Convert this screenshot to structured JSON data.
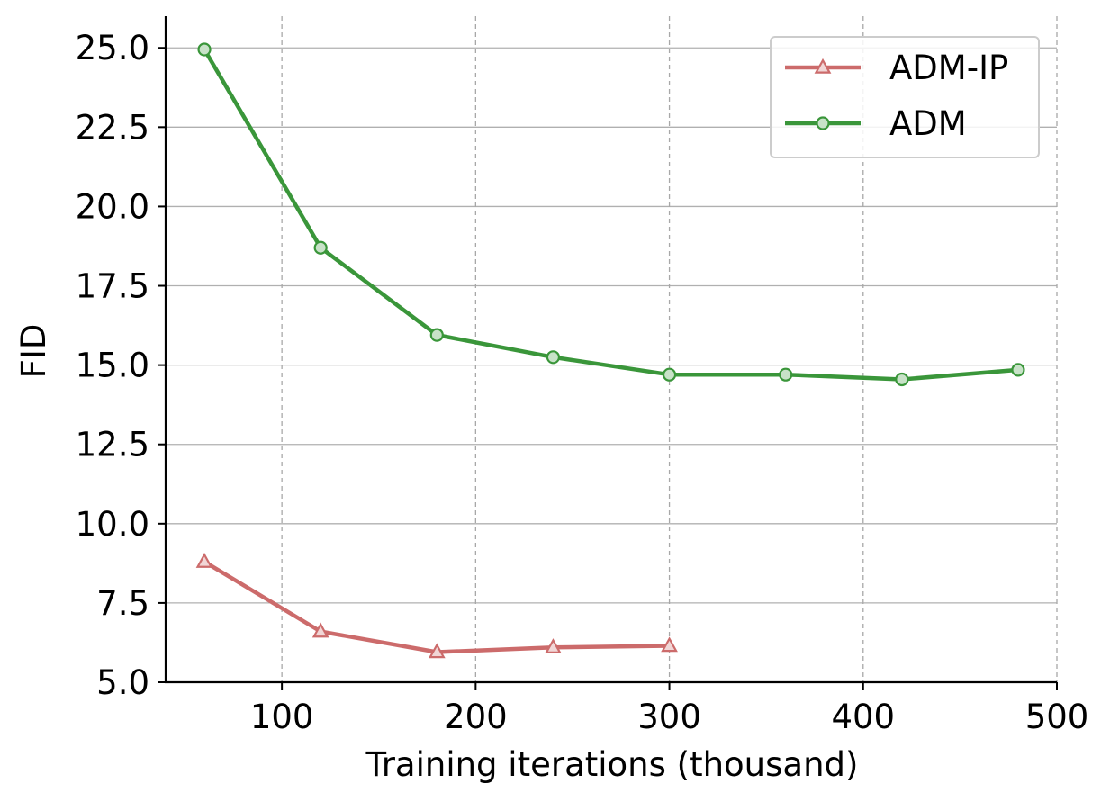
{
  "chart_data": {
    "type": "line",
    "title": "",
    "xlabel": "Training iterations (thousand)",
    "ylabel": "FID",
    "xlim": [
      40,
      500
    ],
    "ylim": [
      5.0,
      26.0
    ],
    "xticks": [
      100,
      200,
      300,
      400,
      500
    ],
    "yticks": [
      5.0,
      7.5,
      10.0,
      12.5,
      15.0,
      17.5,
      20.0,
      22.5,
      25.0
    ],
    "xtick_labels": [
      "100",
      "200",
      "300",
      "400",
      "500"
    ],
    "ytick_labels": [
      "5.0",
      "7.5",
      "10.0",
      "12.5",
      "15.0",
      "17.5",
      "20.0",
      "22.5",
      "25.0"
    ],
    "grid": {
      "vertical": "dashed",
      "horizontal": "solid"
    },
    "legend_position": "top-right",
    "series": [
      {
        "name": "ADM-IP",
        "color": "#cc6b6b",
        "marker": "triangle",
        "x": [
          60,
          120,
          180,
          240,
          300
        ],
        "y": [
          8.8,
          6.6,
          5.95,
          6.1,
          6.15
        ]
      },
      {
        "name": "ADM",
        "color": "#3a963a",
        "marker": "circle",
        "x": [
          60,
          120,
          180,
          240,
          300,
          360,
          420,
          480
        ],
        "y": [
          24.95,
          18.7,
          15.95,
          15.25,
          14.7,
          14.7,
          14.55,
          14.85
        ]
      }
    ]
  }
}
